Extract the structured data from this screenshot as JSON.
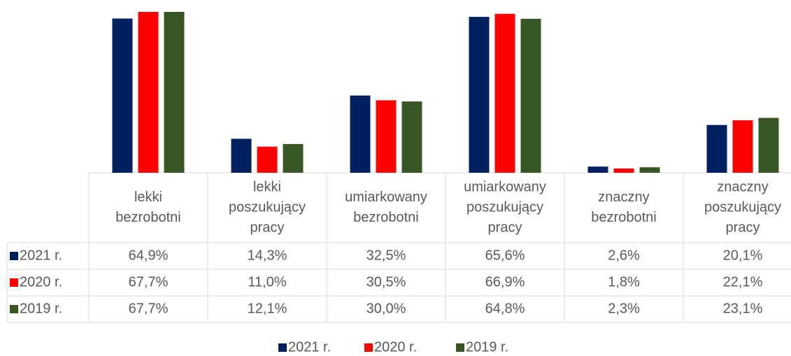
{
  "chart_data": {
    "type": "bar",
    "categories": [
      "lekki bezrobotni",
      "lekki poszukujący pracy",
      "umiarkowany bezrobotni",
      "umiarkowany poszukujący pracy",
      "znaczny bezrobotni",
      "znaczny poszukujący pracy"
    ],
    "series": [
      {
        "name": "2021 r.",
        "color": "#002060",
        "values": [
          64.9,
          14.3,
          32.5,
          65.6,
          2.6,
          20.1
        ],
        "value_labels": [
          "64,9%",
          "14,3%",
          "32,5%",
          "65,6%",
          "2,6%",
          "20,1%"
        ]
      },
      {
        "name": "2020 r.",
        "color": "#ff0000",
        "values": [
          67.7,
          11.0,
          30.5,
          66.9,
          1.8,
          22.1
        ],
        "value_labels": [
          "67,7%",
          "11,0%",
          "30,5%",
          "66,9%",
          "1,8%",
          "22,1%"
        ]
      },
      {
        "name": "2019 r.",
        "color": "#375623",
        "values": [
          67.7,
          12.1,
          30.0,
          64.8,
          2.3,
          23.1
        ],
        "value_labels": [
          "67,7%",
          "12,1%",
          "30,0%",
          "64,8%",
          "2,3%",
          "23,1%"
        ]
      }
    ],
    "legend": "bottom"
  }
}
